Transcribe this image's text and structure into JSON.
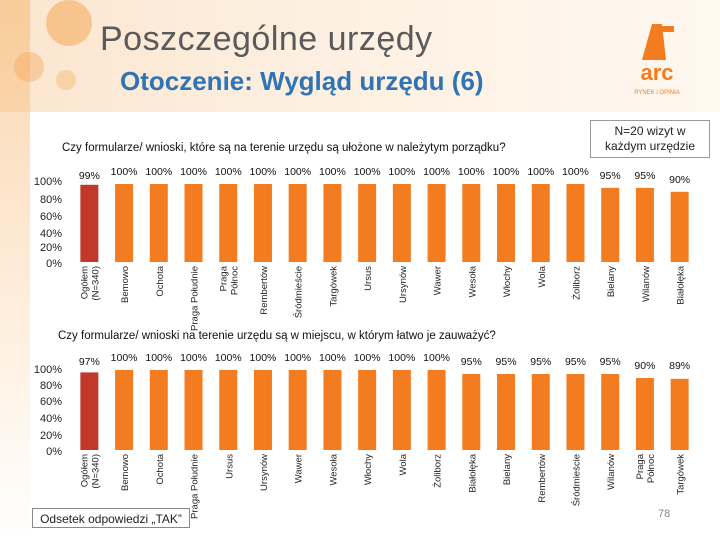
{
  "header": {
    "title": "Poszczególne urzędy",
    "subtitle": "Otoczenie: Wygląd urzędu (6)"
  },
  "logo": {
    "text": "arc",
    "tagline": "RYNEK i OPINIA"
  },
  "note": {
    "line1": "N=20 wizyt w",
    "line2": "każdym urzędzie"
  },
  "footer": {
    "label": "Odsetek odpowiedzi „TAK”",
    "page": "78"
  },
  "colors": {
    "highlight": "#c0392b",
    "bar": "#f47c20",
    "title": "#5a5a5a",
    "subtitle": "#2f74b5"
  },
  "chart_data": [
    {
      "type": "bar",
      "title": "Czy formularze/ wnioski, które są na terenie urzędu są ułożone w należytym porządku?",
      "y_ticks": [
        "100%",
        "80%",
        "60%",
        "40%",
        "20%",
        "0%"
      ],
      "ylim": [
        0,
        100
      ],
      "categories": [
        "Ogółem (N=340)",
        "Bemowo",
        "Ochota",
        "Praga Południe",
        "Praga Północ",
        "Rembertów",
        "Śródmieście",
        "Targówek",
        "Ursus",
        "Ursynów",
        "Wawer",
        "Wesoła",
        "Włochy",
        "Wola",
        "Żoliborz",
        "Bielany",
        "Wilanów",
        "Białołęka"
      ],
      "values": [
        99,
        100,
        100,
        100,
        100,
        100,
        100,
        100,
        100,
        100,
        100,
        100,
        100,
        100,
        100,
        95,
        95,
        90
      ],
      "labels": [
        "99%",
        "100%",
        "100%",
        "100%",
        "100%",
        "100%",
        "100%",
        "100%",
        "100%",
        "100%",
        "100%",
        "100%",
        "100%",
        "100%",
        "100%",
        "95%",
        "95%",
        "90%"
      ]
    },
    {
      "type": "bar",
      "title": "Czy formularze/ wnioski na terenie urzędu są w miejscu, w którym łatwo je zauważyć?",
      "y_ticks": [
        "100%",
        "80%",
        "60%",
        "40%",
        "20%",
        "0%"
      ],
      "ylim": [
        0,
        100
      ],
      "categories": [
        "Ogółem (N=340)",
        "Bemowo",
        "Ochota",
        "Praga Południe",
        "Ursus",
        "Ursynów",
        "Wawer",
        "Wesoła",
        "Włochy",
        "Wola",
        "Żoliborz",
        "Białołęka",
        "Bielany",
        "Rembertów",
        "Śródmieście",
        "Wilanów",
        "Praga Północ",
        "Targówek"
      ],
      "values": [
        97,
        100,
        100,
        100,
        100,
        100,
        100,
        100,
        100,
        100,
        100,
        95,
        95,
        95,
        95,
        95,
        90,
        89
      ],
      "labels": [
        "97%",
        "100%",
        "100%",
        "100%",
        "100%",
        "100%",
        "100%",
        "100%",
        "100%",
        "100%",
        "100%",
        "95%",
        "95%",
        "95%",
        "95%",
        "95%",
        "90%",
        "89%"
      ]
    }
  ]
}
